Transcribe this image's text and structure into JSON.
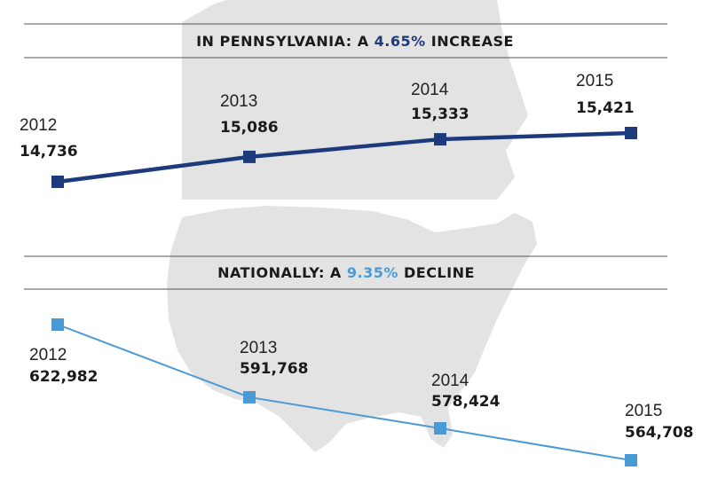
{
  "chart_data": [
    {
      "type": "line",
      "title": {
        "prefix": "IN PENNSYLVANIA: A ",
        "highlight": "4.65%",
        "suffix": " INCREASE"
      },
      "categories": [
        "2012",
        "2013",
        "2014",
        "2015"
      ],
      "values": [
        14736,
        15086,
        15333,
        15421
      ],
      "value_labels": [
        "14,736",
        "15,086",
        "15,333",
        "15,421"
      ],
      "color": "#1c3a7c",
      "highlight_color": "#1c3a7c",
      "background_map": "Pennsylvania"
    },
    {
      "type": "line",
      "title": {
        "prefix": "NATIONALLY: A ",
        "highlight": "9.35%",
        "suffix": " DECLINE"
      },
      "categories": [
        "2012",
        "2013",
        "2014",
        "2015"
      ],
      "values": [
        622982,
        591768,
        578424,
        564708
      ],
      "value_labels": [
        "622,982",
        "591,768",
        "578,424",
        "564,708"
      ],
      "color": "#4a9ad6",
      "highlight_color": "#4a9ad6",
      "background_map": "United States"
    }
  ]
}
